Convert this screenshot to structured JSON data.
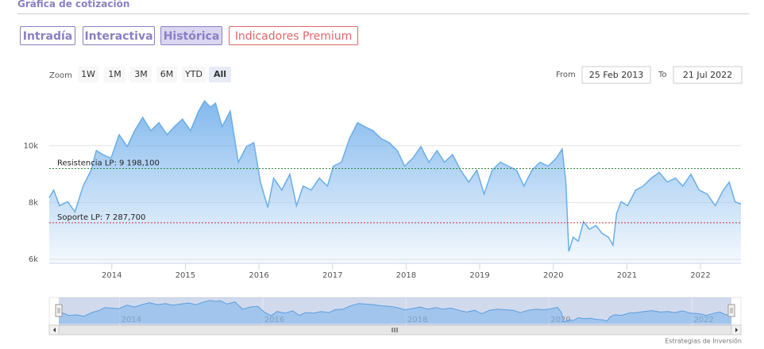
{
  "header": {
    "title": "Gráfica de cotización"
  },
  "tabs": [
    "Intradía",
    "Interactiva",
    "Histórica",
    "Indicadores Premium"
  ],
  "active_tab": 2,
  "premium_tab": 3,
  "zoom": {
    "label": "Zoom",
    "buttons": [
      "1W",
      "1M",
      "3M",
      "6M",
      "YTD",
      "All"
    ],
    "active": 5
  },
  "range": {
    "from_label": "From",
    "from": "25 Feb 2013",
    "to_label": "To",
    "to": "21 Jul 2022"
  },
  "footer": {
    "credit": "Estrategias de Inversión"
  },
  "chart_data": {
    "type": "area",
    "color": "#6aaee8",
    "x": [
      2013.15,
      2013.21,
      2013.29,
      2013.4,
      2013.5,
      2013.61,
      2013.72,
      2013.79,
      2013.88,
      2013.99,
      2014.1,
      2014.21,
      2014.31,
      2014.42,
      2014.53,
      2014.64,
      2014.75,
      2014.85,
      2014.96,
      2015.07,
      2015.18,
      2015.26,
      2015.34,
      2015.41,
      2015.5,
      2015.61,
      2015.72,
      2015.83,
      2015.93,
      2016.02,
      2016.12,
      2016.2,
      2016.31,
      2016.42,
      2016.51,
      2016.6,
      2016.71,
      2016.82,
      2016.93,
      2017.01,
      2017.12,
      2017.23,
      2017.34,
      2017.44,
      2017.55,
      2017.66,
      2017.77,
      2017.88,
      2017.98,
      2018.09,
      2018.2,
      2018.31,
      2018.42,
      2018.52,
      2018.63,
      2018.74,
      2018.85,
      2018.96,
      2019.06,
      2019.17,
      2019.28,
      2019.39,
      2019.5,
      2019.6,
      2019.71,
      2019.82,
      2019.93,
      2020.04,
      2020.12,
      2020.17,
      2020.21,
      2020.27,
      2020.34,
      2020.41,
      2020.49,
      2020.58,
      2020.66,
      2020.75,
      2020.81,
      2020.86,
      2020.92,
      2021.01,
      2021.12,
      2021.22,
      2021.33,
      2021.44,
      2021.55,
      2021.66,
      2021.76,
      2021.87,
      2021.98,
      2022.09,
      2022.2,
      2022.31,
      2022.39,
      2022.47,
      2022.55
    ],
    "values": [
      8170,
      8440,
      7890,
      8030,
      7670,
      8580,
      9140,
      9830,
      9690,
      9560,
      10390,
      9970,
      10530,
      11000,
      10530,
      10810,
      10390,
      10670,
      10940,
      10530,
      11220,
      11580,
      11360,
      11500,
      10670,
      11220,
      9420,
      9970,
      10110,
      8720,
      7830,
      8860,
      8440,
      9000,
      7890,
      8580,
      8440,
      8860,
      8580,
      9280,
      9420,
      10250,
      10810,
      10670,
      10530,
      10250,
      10110,
      9830,
      9280,
      9560,
      9970,
      9420,
      9830,
      9420,
      9690,
      9140,
      8720,
      9140,
      8300,
      9140,
      9420,
      9280,
      9140,
      8580,
      9140,
      9420,
      9280,
      9560,
      9890,
      8720,
      6280,
      6780,
      6640,
      7330,
      7060,
      7190,
      6920,
      6780,
      6500,
      7610,
      8030,
      7890,
      8440,
      8580,
      8860,
      9060,
      8720,
      8860,
      8580,
      9000,
      8440,
      8300,
      7890,
      8440,
      8720,
      8030,
      7940
    ],
    "xlim": [
      2013.15,
      2022.55
    ],
    "xticks": [
      2014,
      2015,
      2016,
      2017,
      2018,
      2019,
      2020,
      2021,
      2022
    ],
    "ylim": [
      5860,
      11920
    ],
    "yticks": [
      {
        "value": 6000,
        "label": "6k"
      },
      {
        "value": 8000,
        "label": "8k"
      },
      {
        "value": 10000,
        "label": "10k"
      }
    ],
    "grid": true,
    "annotations": [
      {
        "label": "Resistencia LP: 9 198,100",
        "value": 9198.1,
        "color": "#2e8b3a"
      },
      {
        "label": "Soporte LP: 7 287,700",
        "value": 7287.7,
        "color": "#c0394b"
      }
    ],
    "navigator_xticks": [
      2014,
      2016,
      2018,
      2020,
      2022
    ]
  }
}
